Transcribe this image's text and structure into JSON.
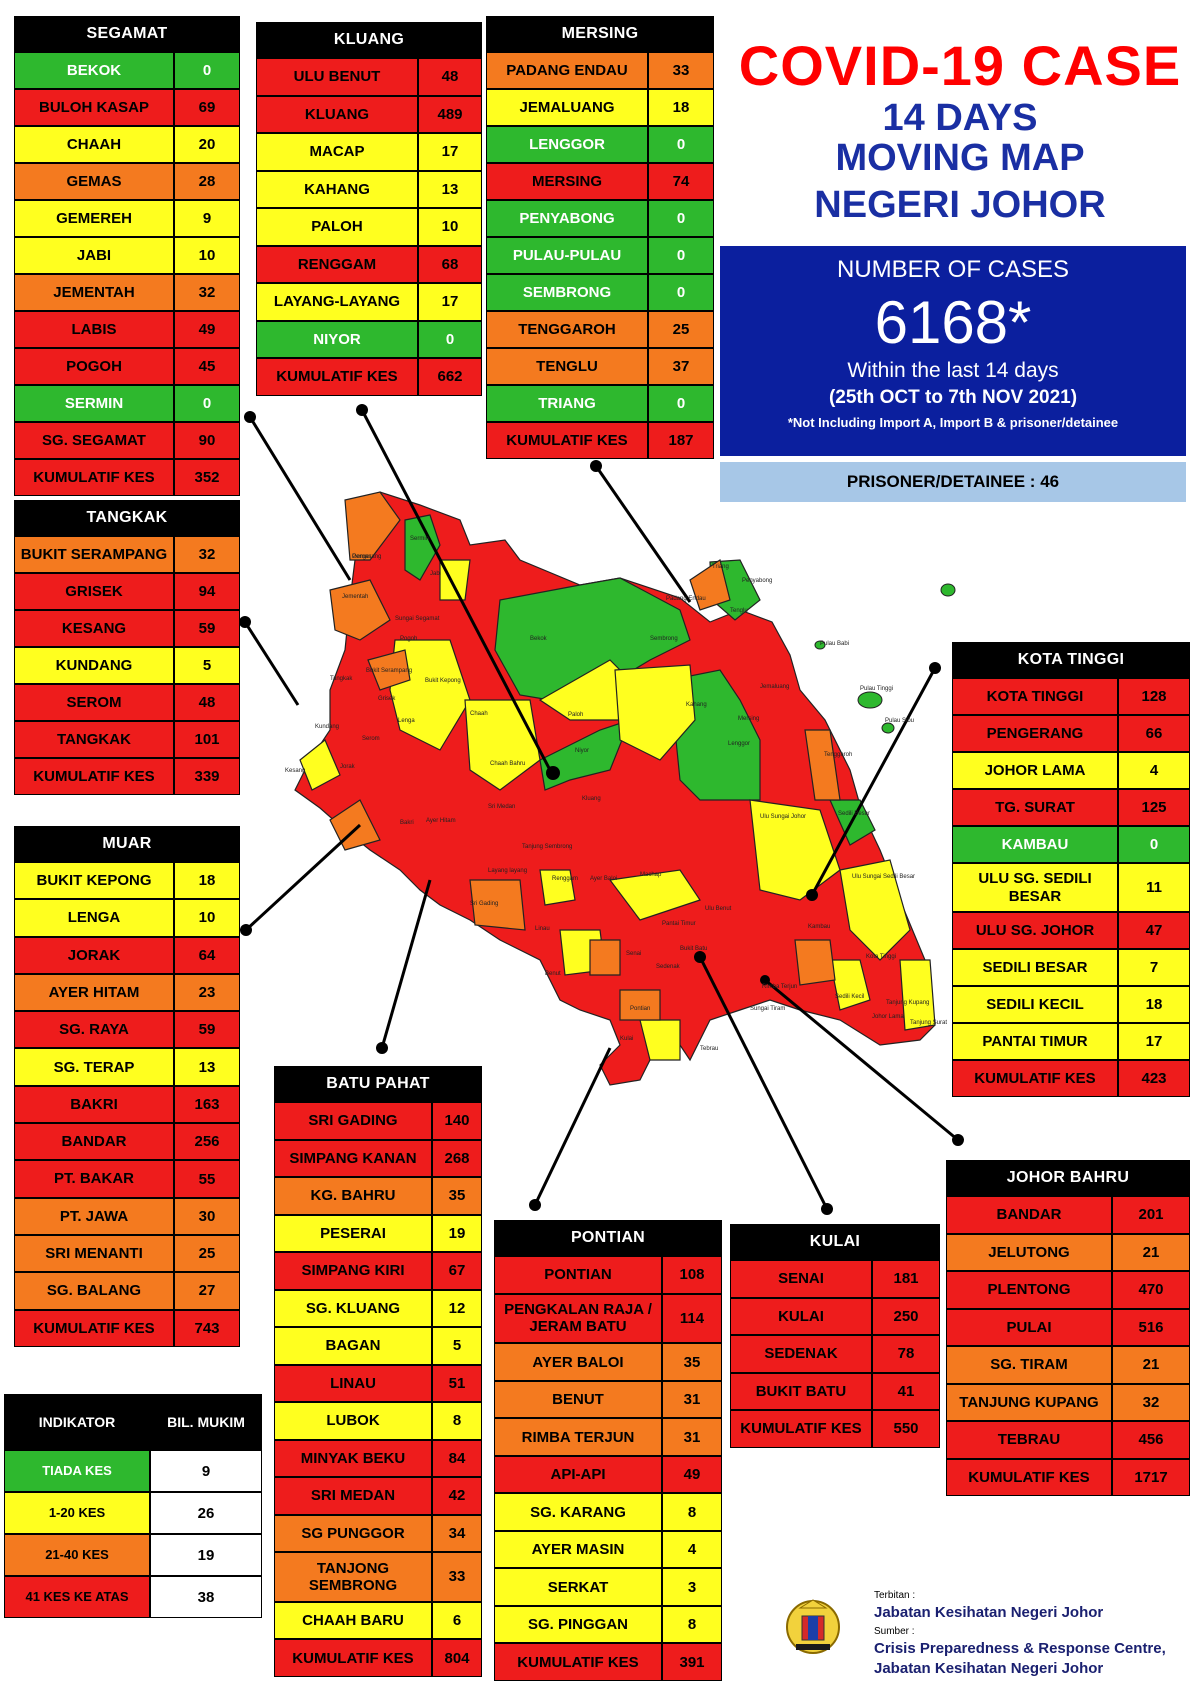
{
  "title": {
    "line1": "COVID-19 CASE",
    "line2": "14 DAYS",
    "line3": "MOVING MAP",
    "line4": "NEGERI JOHOR"
  },
  "summary": {
    "heading": "NUMBER OF CASES",
    "total": "6168*",
    "within": "Within the last 14 days",
    "period": "(25th OCT to 7th NOV 2021)",
    "note": "*Not Including Import A, Import B & prisoner/detainee",
    "prisoner": "PRISONER/DETAINEE : 46"
  },
  "colors": {
    "green": "#2eb82e",
    "yellow": "#ffff1f",
    "orange": "#f47a1f",
    "red": "#ee1c1c",
    "title_red": "#ff0000",
    "title_blue": "#1a2fa3",
    "box_blue": "#0b1f9e"
  },
  "districts": {
    "segamat": {
      "name": "SEGAMAT",
      "rows": [
        {
          "n": "BEKOK",
          "v": "0",
          "c": "g"
        },
        {
          "n": "BULOH KASAP",
          "v": "69",
          "c": "r"
        },
        {
          "n": "CHAAH",
          "v": "20",
          "c": "y"
        },
        {
          "n": "GEMAS",
          "v": "28",
          "c": "o"
        },
        {
          "n": "GEMEREH",
          "v": "9",
          "c": "y"
        },
        {
          "n": "JABI",
          "v": "10",
          "c": "y"
        },
        {
          "n": "JEMENTAH",
          "v": "32",
          "c": "o"
        },
        {
          "n": "LABIS",
          "v": "49",
          "c": "r"
        },
        {
          "n": "POGOH",
          "v": "45",
          "c": "r"
        },
        {
          "n": "SERMIN",
          "v": "0",
          "c": "g"
        },
        {
          "n": "SG. SEGAMAT",
          "v": "90",
          "c": "r"
        },
        {
          "n": "KUMULATIF KES",
          "v": "352",
          "c": "r"
        }
      ]
    },
    "kluang": {
      "name": "KLUANG",
      "rows": [
        {
          "n": "ULU BENUT",
          "v": "48",
          "c": "r"
        },
        {
          "n": "KLUANG",
          "v": "489",
          "c": "r"
        },
        {
          "n": "MACAP",
          "v": "17",
          "c": "y"
        },
        {
          "n": "KAHANG",
          "v": "13",
          "c": "y"
        },
        {
          "n": "PALOH",
          "v": "10",
          "c": "y"
        },
        {
          "n": "RENGGAM",
          "v": "68",
          "c": "r"
        },
        {
          "n": "LAYANG-LAYANG",
          "v": "17",
          "c": "y"
        },
        {
          "n": "NIYOR",
          "v": "0",
          "c": "g"
        },
        {
          "n": "KUMULATIF KES",
          "v": "662",
          "c": "r"
        }
      ]
    },
    "mersing": {
      "name": "MERSING",
      "rows": [
        {
          "n": "PADANG ENDAU",
          "v": "33",
          "c": "o"
        },
        {
          "n": "JEMALUANG",
          "v": "18",
          "c": "y"
        },
        {
          "n": "LENGGOR",
          "v": "0",
          "c": "g"
        },
        {
          "n": "MERSING",
          "v": "74",
          "c": "r"
        },
        {
          "n": "PENYABONG",
          "v": "0",
          "c": "g"
        },
        {
          "n": "PULAU-PULAU",
          "v": "0",
          "c": "g"
        },
        {
          "n": "SEMBRONG",
          "v": "0",
          "c": "g"
        },
        {
          "n": "TENGGAROH",
          "v": "25",
          "c": "o"
        },
        {
          "n": "TENGLU",
          "v": "37",
          "c": "o"
        },
        {
          "n": "TRIANG",
          "v": "0",
          "c": "g"
        },
        {
          "n": "KUMULATIF KES",
          "v": "187",
          "c": "r"
        }
      ]
    },
    "tangkak": {
      "name": "TANGKAK",
      "rows": [
        {
          "n": "BUKIT SERAMPANG",
          "v": "32",
          "c": "o"
        },
        {
          "n": "GRISEK",
          "v": "94",
          "c": "r"
        },
        {
          "n": "KESANG",
          "v": "59",
          "c": "r"
        },
        {
          "n": "KUNDANG",
          "v": "5",
          "c": "y"
        },
        {
          "n": "SEROM",
          "v": "48",
          "c": "r"
        },
        {
          "n": "TANGKAK",
          "v": "101",
          "c": "r"
        },
        {
          "n": "KUMULATIF KES",
          "v": "339",
          "c": "r"
        }
      ]
    },
    "muar": {
      "name": "MUAR",
      "rows": [
        {
          "n": "BUKIT KEPONG",
          "v": "18",
          "c": "y"
        },
        {
          "n": "LENGA",
          "v": "10",
          "c": "y"
        },
        {
          "n": "JORAK",
          "v": "64",
          "c": "r"
        },
        {
          "n": "AYER HITAM",
          "v": "23",
          "c": "o"
        },
        {
          "n": "SG. RAYA",
          "v": "59",
          "c": "r"
        },
        {
          "n": "SG. TERAP",
          "v": "13",
          "c": "y"
        },
        {
          "n": "BAKRI",
          "v": "163",
          "c": "r"
        },
        {
          "n": "BANDAR",
          "v": "256",
          "c": "r"
        },
        {
          "n": "PT. BAKAR",
          "v": "55",
          "c": "r"
        },
        {
          "n": "PT. JAWA",
          "v": "30",
          "c": "o"
        },
        {
          "n": "SRI MENANTI",
          "v": "25",
          "c": "o"
        },
        {
          "n": "SG. BALANG",
          "v": "27",
          "c": "o"
        },
        {
          "n": "KUMULATIF KES",
          "v": "743",
          "c": "r"
        }
      ]
    },
    "batu_pahat": {
      "name": "BATU PAHAT",
      "rows": [
        {
          "n": "SRI GADING",
          "v": "140",
          "c": "r"
        },
        {
          "n": "SIMPANG KANAN",
          "v": "268",
          "c": "r"
        },
        {
          "n": "KG. BAHRU",
          "v": "35",
          "c": "o"
        },
        {
          "n": "PESERAI",
          "v": "19",
          "c": "y"
        },
        {
          "n": "SIMPANG KIRI",
          "v": "67",
          "c": "r"
        },
        {
          "n": "SG. KLUANG",
          "v": "12",
          "c": "y"
        },
        {
          "n": "BAGAN",
          "v": "5",
          "c": "y"
        },
        {
          "n": "LINAU",
          "v": "51",
          "c": "r"
        },
        {
          "n": "LUBOK",
          "v": "8",
          "c": "y"
        },
        {
          "n": "MINYAK BEKU",
          "v": "84",
          "c": "r"
        },
        {
          "n": "SRI MEDAN",
          "v": "42",
          "c": "r"
        },
        {
          "n": "SG PUNGGOR",
          "v": "34",
          "c": "o"
        },
        {
          "n": "TANJONG SEMBRONG",
          "v": "33",
          "c": "o"
        },
        {
          "n": "CHAAH BARU",
          "v": "6",
          "c": "y"
        },
        {
          "n": "KUMULATIF KES",
          "v": "804",
          "c": "r"
        }
      ]
    },
    "pontian": {
      "name": "PONTIAN",
      "rows": [
        {
          "n": "PONTIAN",
          "v": "108",
          "c": "r"
        },
        {
          "n": "PENGKALAN RAJA / JERAM BATU",
          "v": "114",
          "c": "r"
        },
        {
          "n": "AYER BALOI",
          "v": "35",
          "c": "o"
        },
        {
          "n": "BENUT",
          "v": "31",
          "c": "o"
        },
        {
          "n": "RIMBA TERJUN",
          "v": "31",
          "c": "o"
        },
        {
          "n": "API-API",
          "v": "49",
          "c": "r"
        },
        {
          "n": "SG. KARANG",
          "v": "8",
          "c": "y"
        },
        {
          "n": "AYER MASIN",
          "v": "4",
          "c": "y"
        },
        {
          "n": "SERKAT",
          "v": "3",
          "c": "y"
        },
        {
          "n": "SG. PINGGAN",
          "v": "8",
          "c": "y"
        },
        {
          "n": "KUMULATIF KES",
          "v": "391",
          "c": "r"
        }
      ]
    },
    "kulai": {
      "name": "KULAI",
      "rows": [
        {
          "n": "SENAI",
          "v": "181",
          "c": "r"
        },
        {
          "n": "KULAI",
          "v": "250",
          "c": "r"
        },
        {
          "n": "SEDENAK",
          "v": "78",
          "c": "r"
        },
        {
          "n": "BUKIT BATU",
          "v": "41",
          "c": "r"
        },
        {
          "n": "KUMULATIF KES",
          "v": "550",
          "c": "r"
        }
      ]
    },
    "kota_tinggi": {
      "name": "KOTA TINGGI",
      "rows": [
        {
          "n": "KOTA TINGGI",
          "v": "128",
          "c": "r"
        },
        {
          "n": "PENGERANG",
          "v": "66",
          "c": "r"
        },
        {
          "n": "JOHOR LAMA",
          "v": "4",
          "c": "y"
        },
        {
          "n": "TG. SURAT",
          "v": "125",
          "c": "r"
        },
        {
          "n": "KAMBAU",
          "v": "0",
          "c": "g"
        },
        {
          "n": "ULU SG. SEDILI BESAR",
          "v": "11",
          "c": "y"
        },
        {
          "n": "ULU SG. JOHOR",
          "v": "47",
          "c": "r"
        },
        {
          "n": "SEDILI BESAR",
          "v": "7",
          "c": "y"
        },
        {
          "n": "SEDILI KECIL",
          "v": "18",
          "c": "y"
        },
        {
          "n": "PANTAI TIMUR",
          "v": "17",
          "c": "y"
        },
        {
          "n": "KUMULATIF KES",
          "v": "423",
          "c": "r"
        }
      ]
    },
    "johor_bahru": {
      "name": "JOHOR BAHRU",
      "rows": [
        {
          "n": "BANDAR",
          "v": "201",
          "c": "r"
        },
        {
          "n": "JELUTONG",
          "v": "21",
          "c": "o"
        },
        {
          "n": "PLENTONG",
          "v": "470",
          "c": "r"
        },
        {
          "n": "PULAI",
          "v": "516",
          "c": "r"
        },
        {
          "n": "SG. TIRAM",
          "v": "21",
          "c": "o"
        },
        {
          "n": "TANJUNG KUPANG",
          "v": "32",
          "c": "o"
        },
        {
          "n": "TEBRAU",
          "v": "456",
          "c": "r"
        },
        {
          "n": "KUMULATIF KES",
          "v": "1717",
          "c": "r"
        }
      ]
    }
  },
  "legend": {
    "h1": "INDIKATOR",
    "h2": "BIL. MUKIM",
    "rows": [
      {
        "label": "TIADA KES",
        "count": "9",
        "c": "g"
      },
      {
        "label": "1-20 KES",
        "count": "26",
        "c": "y"
      },
      {
        "label": "21-40 KES",
        "count": "19",
        "c": "o"
      },
      {
        "label": "41 KES KE ATAS",
        "count": "38",
        "c": "r"
      }
    ]
  },
  "footer": {
    "terbitan_label": "Terbitan :",
    "terbitan": "Jabatan Kesihatan Negeri Johor",
    "sumber_label": "Sumber :",
    "sumber1": "Crisis Preparedness & Response Centre,",
    "sumber2": "Jabatan Kesihatan Negeri Johor"
  },
  "map_labels": [
    "Gemas",
    "Sermin",
    "Jabi",
    "Jementah",
    "Sungai Segamat",
    "Pogoh",
    "Bukit Serampang",
    "Bukit Kepong",
    "Lenga",
    "Bekok",
    "Sembrong",
    "Paloh",
    "Kahang",
    "Niyor",
    "Lenggor",
    "Mersing",
    "Jemaluang",
    "Padang Endau",
    "Triang",
    "Penyabong",
    "Tenglu",
    "Pulau Babi",
    "Pulau Tinggi",
    "Pulau Sibu",
    "Tenggaroh",
    "Chaah",
    "Chaah Bahru",
    "Grisek",
    "Tangkak",
    "Kundang",
    "Kesang",
    "Serom",
    "Jorak",
    "Bakri",
    "Ayer Hitam",
    "Sri Medan",
    "Tanjung Sembrong",
    "Kluang",
    "Renggam",
    "Machap",
    "Layang layang",
    "Sri Gading",
    "Linau",
    "Benut",
    "Ayer Baloi",
    "Ulu Benut",
    "Ulu Sungai Johor",
    "Ulu Sungai Sedili Besar",
    "Sedili Besar",
    "Kambau",
    "Kota Tinggi",
    "Sedili Kecil",
    "Johor Lama",
    "Tanjung Surat",
    "Pantai Timur",
    "Senai",
    "Sedenak",
    "Bukit Batu",
    "Kulai",
    "Pontian",
    "Rimba Terjun",
    "Sungai Tiram",
    "Tebrau",
    "Tanjung Kupang",
    "Pengerang"
  ]
}
